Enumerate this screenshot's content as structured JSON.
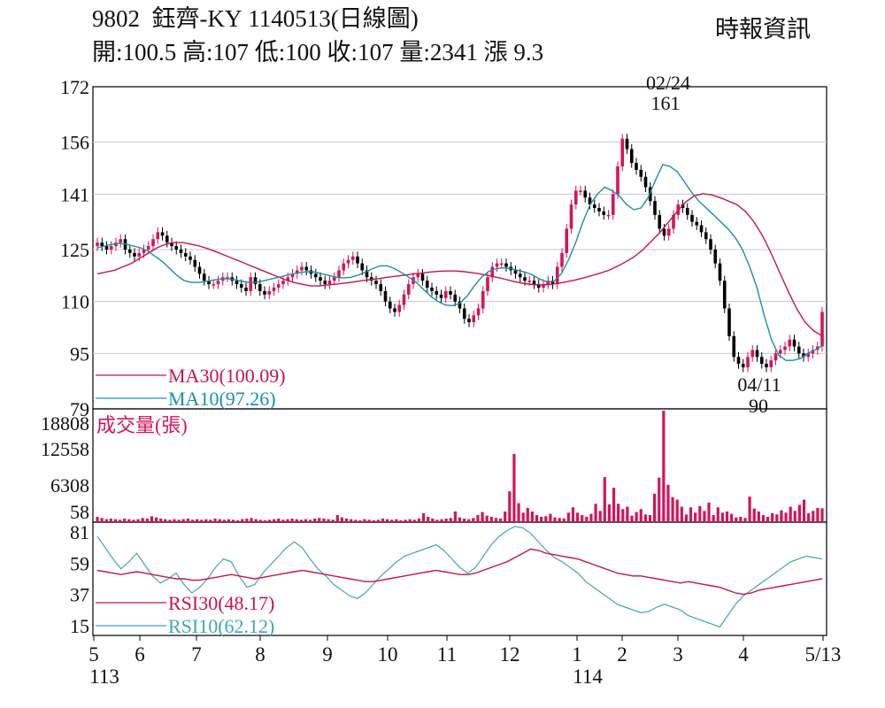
{
  "header": {
    "code": "9802",
    "name": "鈺齊-KY",
    "date_title": "1140513(日線圖)",
    "open_label": "開",
    "open_value": "100.5",
    "high_label": "高",
    "high_value": "107",
    "low_label": "低",
    "low_value": "100",
    "close_label": "收",
    "close_value": "107",
    "volume_label": "量",
    "volume_value": "2341",
    "change_label": "漲",
    "change_value": "9.3",
    "source": "時報資訊"
  },
  "colors": {
    "up": "#d4145a",
    "down": "#000000",
    "ma30": "#c8144b",
    "ma10": "#1a8fae",
    "rsi30": "#c8144b",
    "rsi10": "#3fa6b8",
    "volume": "#d4145a",
    "grid": "#c8c8c8",
    "frame": "#000000"
  },
  "chart_data": [
    {
      "type": "candlestick",
      "yticks": [
        "172",
        "156",
        "141",
        "125",
        "110",
        "95",
        "79"
      ],
      "ylim": [
        79,
        172
      ],
      "grid": true,
      "annotations": [
        {
          "date": "02/24",
          "value": "161"
        },
        {
          "date": "04/11",
          "value": "90"
        }
      ],
      "legend": [
        {
          "name": "MA30(100.09)",
          "color": "#c8144b"
        },
        {
          "name": "MA10(97.26)",
          "color": "#1a8fae"
        }
      ],
      "series": [
        {
          "name": "price",
          "close": [
            127,
            126,
            125,
            126,
            127,
            128,
            125,
            124,
            123,
            124,
            125,
            126,
            128,
            130,
            129,
            127,
            126,
            125,
            124,
            123,
            122,
            120,
            118,
            116,
            115,
            115,
            116,
            117,
            117,
            116,
            115,
            114,
            113,
            117,
            115,
            113,
            112,
            113,
            114,
            115,
            116,
            117,
            118,
            119,
            120,
            119,
            118,
            117,
            116,
            115,
            116,
            117,
            119,
            121,
            122,
            123,
            121,
            119,
            117,
            116,
            115,
            113,
            110,
            108,
            107,
            109,
            112,
            115,
            117,
            118,
            116,
            114,
            113,
            112,
            111,
            113,
            112,
            110,
            108,
            105,
            104,
            106,
            108,
            113,
            117,
            120,
            121,
            121,
            120,
            119,
            118,
            117,
            116,
            116,
            115,
            114,
            115,
            116,
            115,
            120,
            124,
            131,
            138,
            142,
            142,
            140,
            138,
            137,
            136,
            135,
            135,
            141,
            149,
            157,
            154,
            150,
            148,
            146,
            143,
            139,
            135,
            131,
            129,
            131,
            135,
            138,
            137,
            135,
            133,
            132,
            130,
            128,
            125,
            121,
            116,
            108,
            100,
            94,
            92,
            91,
            94,
            96,
            94,
            92,
            91,
            93,
            95,
            96,
            97,
            99,
            97,
            95,
            94,
            95,
            96,
            97,
            107
          ]
        },
        {
          "name": "MA30",
          "values": [
            118,
            118.5,
            119,
            120,
            121,
            122.5,
            124,
            125.5,
            126.5,
            127,
            127,
            126.5,
            126,
            125.2,
            124.3,
            123.3,
            122.3,
            121.3,
            120.3,
            119.3,
            118.3,
            117.3,
            116.3,
            115.5,
            115,
            114.5,
            114.5,
            114.8,
            115,
            115.3,
            115.6,
            116,
            116.3,
            116.6,
            117,
            117.3,
            117.6,
            117.9,
            118.2,
            118.5,
            118.7,
            118.8,
            118.8,
            118.6,
            118.3,
            117.9,
            117.4,
            116.9,
            116.3,
            115.7,
            115.2,
            114.9,
            114.8,
            114.9,
            115.2,
            115.7,
            116.2,
            116.8,
            117.5,
            118.2,
            119,
            120.2,
            121.5,
            123,
            125,
            127.5,
            130,
            133,
            136,
            138.7,
            140.5,
            141.1,
            140.8,
            140,
            139,
            138,
            136,
            133,
            129,
            124,
            118.5,
            113,
            108,
            104,
            101.5,
            100.1
          ]
        },
        {
          "name": "MA10",
          "values": [
            125.5,
            126,
            126.5,
            126.8,
            126.5,
            126,
            125.5,
            124.5,
            123,
            121.5,
            119.5,
            117.5,
            116,
            115.5,
            115.5,
            115.8,
            116.2,
            116.5,
            116.6,
            116.3,
            115.8,
            115.5,
            115.5,
            116,
            116.5,
            117,
            117.5,
            118,
            118.4,
            118.6,
            118.5,
            118,
            117.5,
            117,
            116.8,
            117,
            117.6,
            118.5,
            119.5,
            120.3,
            120.3,
            119.5,
            118.3,
            117,
            115.5,
            113.5,
            111.5,
            110,
            109,
            108.8,
            109.5,
            111.5,
            114.5,
            117,
            118.7,
            119.5,
            119.7,
            119.5,
            119,
            118.5,
            117.7,
            116.5,
            115.7,
            115.8,
            118,
            122,
            127,
            133,
            138,
            141,
            143,
            142,
            140.5,
            138,
            136.5,
            137,
            140,
            145,
            149.5,
            149,
            147.5,
            144.5,
            141.5,
            139,
            137,
            135,
            133,
            131,
            128.5,
            125,
            120,
            114,
            106,
            99,
            94.5,
            93,
            93,
            93.5,
            95,
            96,
            97.3
          ]
        }
      ]
    },
    {
      "type": "bar",
      "title": "成交量(張)",
      "yticks": [
        "18808",
        "12558",
        "6308",
        "58"
      ],
      "ylim": [
        58,
        18808
      ],
      "values": [
        900,
        700,
        500,
        600,
        500,
        400,
        600,
        500,
        400,
        500,
        700,
        600,
        1000,
        800,
        600,
        500,
        400,
        500,
        400,
        500,
        600,
        400,
        500,
        400,
        500,
        400,
        600,
        500,
        400,
        500,
        400,
        300,
        500,
        600,
        700,
        500,
        400,
        300,
        400,
        500,
        600,
        400,
        500,
        600,
        500,
        400,
        500,
        400,
        600,
        700,
        600,
        500,
        400,
        1200,
        800,
        600,
        500,
        400,
        300,
        500,
        400,
        300,
        400,
        600,
        500,
        400,
        500,
        300,
        400,
        500,
        400,
        600,
        1500,
        900,
        600,
        400,
        500,
        600,
        700,
        1800,
        800,
        600,
        500,
        700,
        1200,
        1700,
        1100,
        900,
        700,
        600,
        1800,
        5200,
        11500,
        3200,
        1600,
        2400,
        1800,
        1200,
        900,
        1000,
        1400,
        800,
        700,
        600,
        1600,
        2500,
        1600,
        1200,
        900,
        1400,
        3100,
        1900,
        7600,
        3000,
        5800,
        3100,
        2200,
        2600,
        1100,
        1700,
        2200,
        1300,
        1200,
        4800,
        7500,
        18800,
        6300,
        4200,
        3800,
        2600,
        1300,
        2500,
        1600,
        2700,
        1900,
        3300,
        1200,
        2500,
        1600,
        1800,
        1400,
        800,
        900,
        700,
        4300,
        2300,
        1800,
        1200,
        900,
        1500,
        1300,
        2000,
        1600,
        2600,
        1900,
        2900,
        3800,
        1500,
        1900,
        2400,
        2341
      ]
    },
    {
      "type": "line",
      "yticks": [
        "81",
        "59",
        "37",
        "15"
      ],
      "ylim": [
        8,
        88
      ],
      "legend": [
        {
          "name": "RSI30(48.17)",
          "color": "#c8144b"
        },
        {
          "name": "RSI10(62.12)",
          "color": "#3fa6b8"
        }
      ],
      "series": [
        {
          "name": "RSI30",
          "values": [
            54,
            53,
            52,
            51,
            52,
            53,
            52,
            51,
            50,
            49,
            48,
            48,
            47,
            47,
            48,
            49,
            50,
            51,
            50,
            49,
            48,
            49,
            50,
            51,
            52,
            53,
            54,
            53,
            52,
            51,
            50,
            49,
            48,
            47,
            46,
            46,
            47,
            48,
            49,
            50,
            51,
            52,
            53,
            54,
            53,
            52,
            51,
            51,
            52,
            54,
            56,
            58,
            60,
            63,
            66,
            69,
            68,
            66,
            65,
            64,
            63,
            62,
            60,
            58,
            56,
            54,
            52,
            51,
            50,
            50,
            49,
            48,
            47,
            46,
            45,
            46,
            45,
            44,
            43,
            42,
            40,
            38,
            37,
            38,
            40,
            41,
            42,
            43,
            44,
            45,
            46,
            47,
            48
          ]
        },
        {
          "name": "RSI10",
          "values": [
            78,
            70,
            62,
            55,
            60,
            66,
            58,
            50,
            45,
            48,
            52,
            44,
            38,
            42,
            48,
            56,
            62,
            60,
            50,
            42,
            44,
            52,
            58,
            64,
            70,
            74,
            70,
            62,
            55,
            50,
            44,
            40,
            36,
            34,
            38,
            44,
            50,
            55,
            60,
            64,
            66,
            68,
            70,
            72,
            68,
            62,
            56,
            52,
            56,
            64,
            72,
            78,
            82,
            85,
            84,
            80,
            74,
            68,
            63,
            60,
            56,
            52,
            46,
            42,
            38,
            34,
            30,
            28,
            26,
            24,
            25,
            28,
            30,
            28,
            26,
            22,
            20,
            18,
            16,
            14,
            22,
            30,
            36,
            40,
            44,
            48,
            52,
            56,
            60,
            62,
            64,
            63,
            62
          ]
        }
      ]
    }
  ],
  "xaxis": {
    "months": [
      "5",
      "6",
      "7",
      "8",
      "9",
      "10",
      "11",
      "12",
      "1",
      "2",
      "3",
      "4",
      "5/13"
    ],
    "years": [
      "113",
      "114"
    ]
  }
}
